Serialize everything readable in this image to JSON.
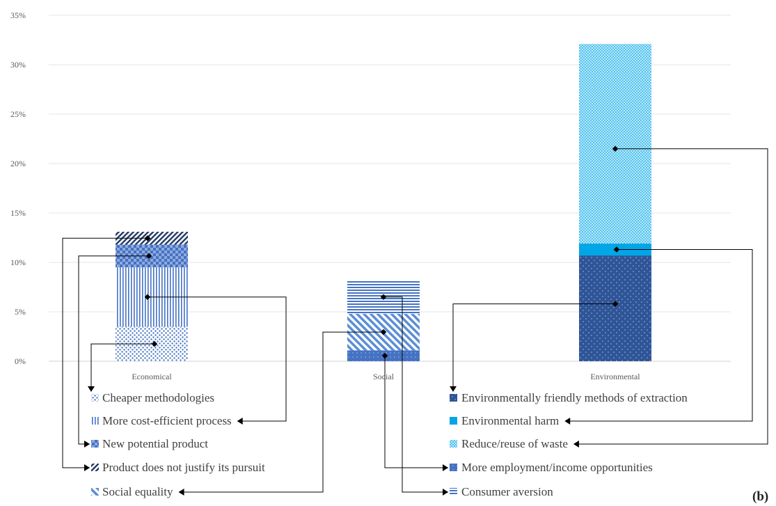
{
  "panel_label": "(b)",
  "chart_data": {
    "type": "bar",
    "stacked": true,
    "categories": [
      "Economical",
      "Social",
      "Environmental"
    ],
    "y_ticks": [
      "0%",
      "5%",
      "10%",
      "15%",
      "20%",
      "25%",
      "30%",
      "35%"
    ],
    "ylim": [
      0,
      35
    ],
    "grid": true,
    "series": [
      {
        "name": "Cheaper methodologies",
        "category": "Economical",
        "value": 3.5,
        "pattern": "dots",
        "color": "#4472C4"
      },
      {
        "name": "More cost-efficient process",
        "category": "Economical",
        "value": 6.0,
        "pattern": "vlines",
        "color": "#4472C4"
      },
      {
        "name": "New potential product",
        "category": "Economical",
        "value": 2.3,
        "pattern": "checker",
        "color": "#4472C4"
      },
      {
        "name": "Product does not justify its pursuit",
        "category": "Economical",
        "value": 1.3,
        "pattern": "diag-dark",
        "color": "#2F4F8F"
      },
      {
        "name": "Social equality",
        "category": "Social",
        "value": 3.7,
        "pattern": "diag",
        "color": "#5B8FD6"
      },
      {
        "name": "More employment/income opportunities",
        "category": "Social",
        "value": 1.1,
        "pattern": "dots-solid",
        "color": "#4472C4"
      },
      {
        "name": "Consumer aversion",
        "category": "Social",
        "value": 3.4,
        "pattern": "hlines",
        "color": "#4472C4"
      },
      {
        "name": "Environmentally friendly methods of extraction",
        "category": "Environmental",
        "value": 10.7,
        "pattern": "dots-dark",
        "color": "#2F5597"
      },
      {
        "name": "Environmental harm",
        "category": "Environmental",
        "value": 1.2,
        "pattern": "solid",
        "color": "#00A6E6"
      },
      {
        "name": "Reduce/reuse of waste",
        "category": "Environmental",
        "value": 20.2,
        "pattern": "fine-checker",
        "color": "#4FC3F0"
      }
    ],
    "stack_order": {
      "Economical": [
        "Cheaper methodologies",
        "More cost-efficient process",
        "New potential product",
        "Product does not justify its pursuit"
      ],
      "Social": [
        "More employment/income opportunities",
        "Social equality",
        "Consumer aversion"
      ],
      "Environmental": [
        "Environmentally friendly methods of extraction",
        "Environmental harm",
        "Reduce/reuse of waste"
      ]
    },
    "legend_left": [
      "Cheaper methodologies",
      "More cost-efficient process",
      "New potential product",
      "Product does not justify its pursuit",
      "Social equality"
    ],
    "legend_right": [
      "Environmentally friendly methods of extraction",
      "Environmental harm",
      "Reduce/reuse of waste",
      "More employment/income opportunities",
      "Consumer aversion"
    ]
  }
}
